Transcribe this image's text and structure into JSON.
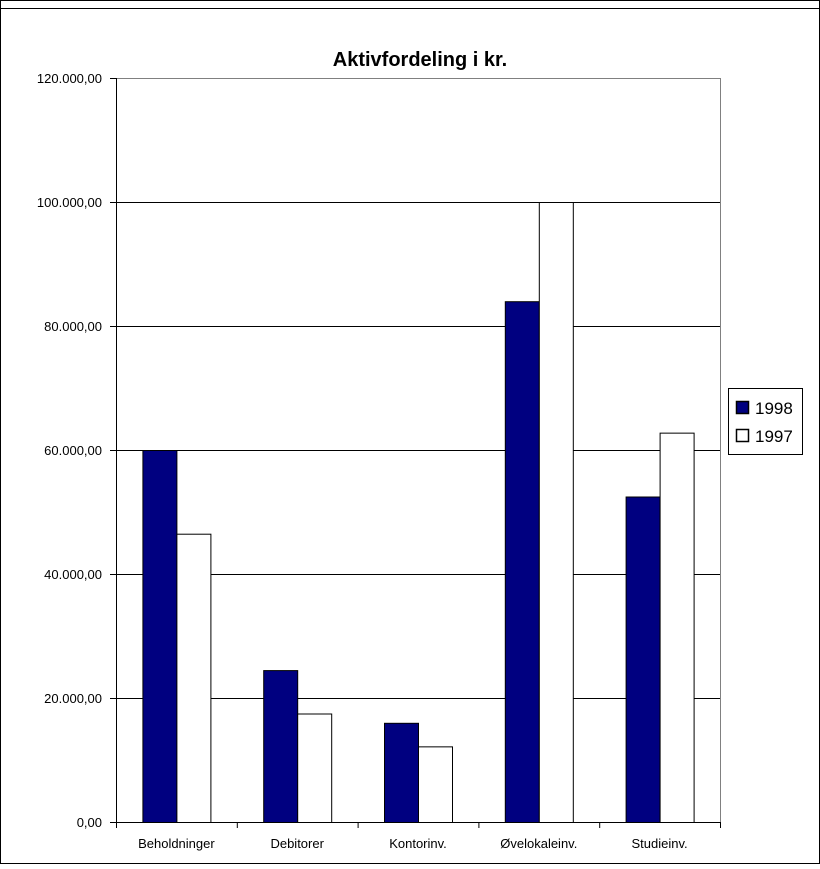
{
  "chart_data": {
    "type": "bar",
    "title": "Aktivfordeling i kr.",
    "xlabel": "",
    "ylabel": "",
    "categories": [
      "Beholdninger",
      "Debitorer",
      "Kontorinv.",
      "Øvelokaleinv.",
      "Studieinv."
    ],
    "series": [
      {
        "name": "1998",
        "values": [
          60000,
          24500,
          16000,
          84000,
          52500
        ],
        "fill": "#000080",
        "stroke": "#000000"
      },
      {
        "name": "1997",
        "values": [
          46500,
          17500,
          12200,
          100000,
          62800
        ],
        "fill": "#ffffff",
        "stroke": "#000000"
      }
    ],
    "ylim": [
      0,
      120000
    ],
    "yticks": [
      0,
      20000,
      40000,
      60000,
      80000,
      100000,
      120000
    ],
    "ytick_labels": [
      "0,00",
      "20.000,00",
      "40.000,00",
      "60.000,00",
      "80.000,00",
      "100.000,00",
      "120.000,00"
    ],
    "grid": true,
    "legend": "right",
    "plot_border_color": "#808080"
  }
}
